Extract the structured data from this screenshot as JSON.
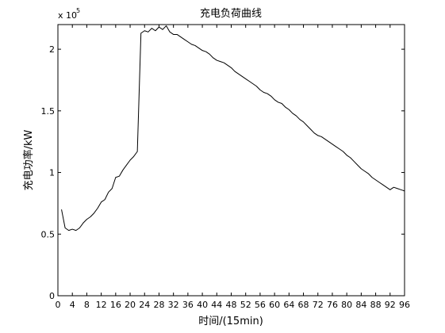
{
  "chart_data": {
    "type": "line",
    "title": "充电负荷曲线",
    "xlabel": "时间/(15min)",
    "ylabel": "充电功率/kW",
    "y_scale_base": "x 10",
    "y_scale_exponent": "5",
    "xlim": [
      0,
      96
    ],
    "ylim": [
      0,
      2.2
    ],
    "x_ticks": [
      0,
      4,
      8,
      12,
      16,
      20,
      24,
      28,
      32,
      36,
      40,
      44,
      48,
      52,
      56,
      60,
      64,
      68,
      72,
      76,
      80,
      84,
      88,
      92,
      96
    ],
    "y_ticks": [
      0,
      0.5,
      1,
      1.5,
      2
    ],
    "y_tick_labels": [
      "0",
      "0.5",
      "1",
      "1.5",
      "2"
    ],
    "grid": false,
    "series": [
      {
        "color": "#000000",
        "x": [
          1,
          2,
          3,
          4,
          5,
          6,
          7,
          8,
          9,
          10,
          11,
          12,
          13,
          14,
          15,
          16,
          17,
          18,
          19,
          20,
          21,
          22,
          23,
          24,
          25,
          26,
          27,
          28,
          29,
          30,
          31,
          32,
          33,
          34,
          35,
          36,
          37,
          38,
          39,
          40,
          41,
          42,
          43,
          44,
          45,
          46,
          47,
          48,
          49,
          50,
          51,
          52,
          53,
          54,
          55,
          56,
          57,
          58,
          59,
          60,
          61,
          62,
          63,
          64,
          65,
          66,
          67,
          68,
          69,
          70,
          71,
          72,
          73,
          74,
          75,
          76,
          77,
          78,
          79,
          80,
          81,
          82,
          83,
          84,
          85,
          86,
          87,
          88,
          89,
          90,
          91,
          92,
          93,
          94,
          95,
          96
        ],
        "values": [
          0.7,
          0.55,
          0.53,
          0.54,
          0.53,
          0.55,
          0.59,
          0.62,
          0.64,
          0.67,
          0.71,
          0.76,
          0.78,
          0.84,
          0.87,
          0.96,
          0.97,
          1.02,
          1.06,
          1.1,
          1.13,
          1.17,
          2.13,
          2.15,
          2.14,
          2.17,
          2.15,
          2.18,
          2.16,
          2.19,
          2.14,
          2.12,
          2.12,
          2.1,
          2.08,
          2.06,
          2.04,
          2.03,
          2.01,
          1.99,
          1.98,
          1.96,
          1.93,
          1.91,
          1.9,
          1.89,
          1.87,
          1.85,
          1.82,
          1.8,
          1.78,
          1.76,
          1.74,
          1.72,
          1.7,
          1.67,
          1.65,
          1.64,
          1.62,
          1.59,
          1.57,
          1.56,
          1.53,
          1.51,
          1.48,
          1.46,
          1.43,
          1.41,
          1.38,
          1.35,
          1.32,
          1.3,
          1.29,
          1.27,
          1.25,
          1.23,
          1.21,
          1.19,
          1.17,
          1.14,
          1.12,
          1.09,
          1.06,
          1.03,
          1.01,
          0.99,
          0.96,
          0.94,
          0.92,
          0.9,
          0.88,
          0.86,
          0.88,
          0.87,
          0.86,
          0.85
        ]
      }
    ]
  }
}
